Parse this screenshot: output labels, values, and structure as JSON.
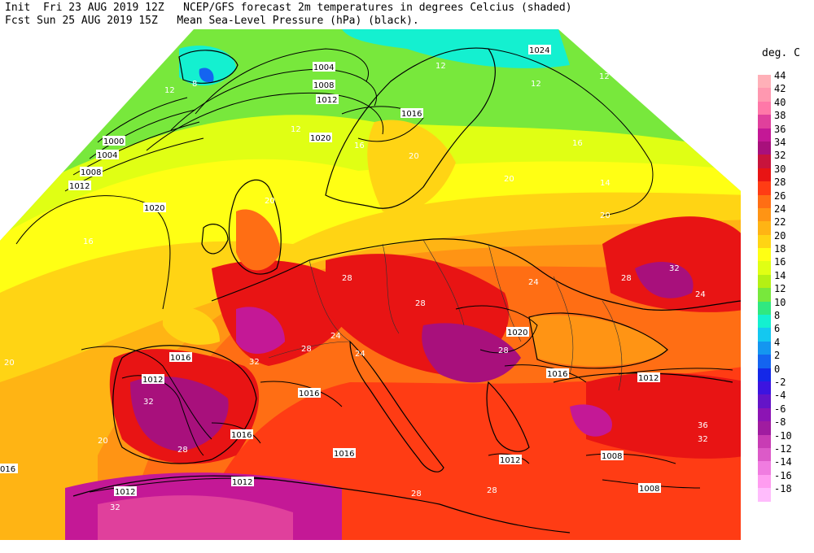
{
  "header": {
    "line1": "Init  Fri 23 AUG 2019 12Z   NCEP/GFS forecast 2m temperatures in degrees Celcius (shaded)",
    "line2": "Fcst Sun 25 AUG 2019 15Z   Mean Sea-Level Pressure (hPa) (black)."
  },
  "legend": {
    "title": "deg. C",
    "levels": [
      {
        "label": "44",
        "color": "#ffb0b8"
      },
      {
        "label": "42",
        "color": "#ff98b0"
      },
      {
        "label": "40",
        "color": "#ff78a8"
      },
      {
        "label": "38",
        "color": "#e0409c"
      },
      {
        "label": "36",
        "color": "#c41896"
      },
      {
        "label": "34",
        "color": "#a8107c"
      },
      {
        "label": "32",
        "color": "#c8143c"
      },
      {
        "label": "30",
        "color": "#e81414"
      },
      {
        "label": "28",
        "color": "#ff3c14"
      },
      {
        "label": "26",
        "color": "#ff6e14"
      },
      {
        "label": "24",
        "color": "#ff9414"
      },
      {
        "label": "22",
        "color": "#ffb414"
      },
      {
        "label": "20",
        "color": "#ffd414"
      },
      {
        "label": "18",
        "color": "#ffff14"
      },
      {
        "label": "16",
        "color": "#e0ff14"
      },
      {
        "label": "14",
        "color": "#b4f014"
      },
      {
        "label": "12",
        "color": "#78e83c"
      },
      {
        "label": "10",
        "color": "#30e880"
      },
      {
        "label": "8",
        "color": "#14f0d0"
      },
      {
        "label": "6",
        "color": "#14c8f0"
      },
      {
        "label": "4",
        "color": "#1496f0"
      },
      {
        "label": "2",
        "color": "#1464f0"
      },
      {
        "label": "0",
        "color": "#1428e8"
      },
      {
        "label": "-2",
        "color": "#3c14e0"
      },
      {
        "label": "-4",
        "color": "#6414c8"
      },
      {
        "label": "-6",
        "color": "#8c14b4"
      },
      {
        "label": "-8",
        "color": "#a01ca0"
      },
      {
        "label": "-10",
        "color": "#c83cb4"
      },
      {
        "label": "-12",
        "color": "#dc5ac8"
      },
      {
        "label": "-14",
        "color": "#f07ce0"
      },
      {
        "label": "-16",
        "color": "#ff9cf0"
      },
      {
        "label": "-18",
        "color": "#ffbcfc"
      }
    ]
  },
  "temp_labels": [
    "12",
    "12",
    "16",
    "16",
    "16",
    "20",
    "20",
    "20",
    "24",
    "24",
    "24",
    "24",
    "28",
    "28",
    "28",
    "28",
    "28",
    "28",
    "28",
    "28",
    "32",
    "32",
    "32",
    "32",
    "32",
    "36",
    "8",
    "12",
    "12",
    "12",
    "14",
    "20",
    "20",
    "20"
  ],
  "pressure_labels": [
    "1004",
    "1008",
    "1012",
    "1016",
    "1020",
    "1024",
    "1000",
    "1004",
    "1008",
    "1012",
    "1020",
    "1016",
    "1016",
    "1012",
    "1016",
    "1016",
    "1012",
    "1012",
    "1012",
    "1020",
    "1016",
    "1012",
    "1008",
    "1008",
    "016"
  ]
}
